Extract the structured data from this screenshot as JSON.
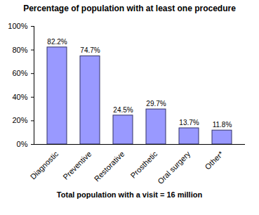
{
  "chart_data": {
    "type": "bar",
    "title": "Percentage of population with at least one procedure",
    "xlabel": "Total population with a visit = 16 million",
    "categories": [
      "Diagnostic",
      "Preventive",
      "Restorative",
      "Prosthetic",
      "Oral surgery",
      "Other*"
    ],
    "values": [
      82.2,
      74.7,
      24.5,
      29.7,
      13.7,
      11.8
    ],
    "value_labels": [
      "82.2%",
      "74.7%",
      "24.5%",
      "29.7%",
      "13.7%",
      "11.8%"
    ],
    "color": "#9999ff",
    "ylim": [
      0,
      100
    ],
    "yticks": [
      {
        "value": 0,
        "label": "0%"
      },
      {
        "value": 20,
        "label": "20%"
      },
      {
        "value": 40,
        "label": "40%"
      },
      {
        "value": 60,
        "label": "60%"
      },
      {
        "value": 80,
        "label": "80%"
      },
      {
        "value": 100,
        "label": "100%"
      }
    ],
    "grid": false,
    "data_labels": true
  }
}
